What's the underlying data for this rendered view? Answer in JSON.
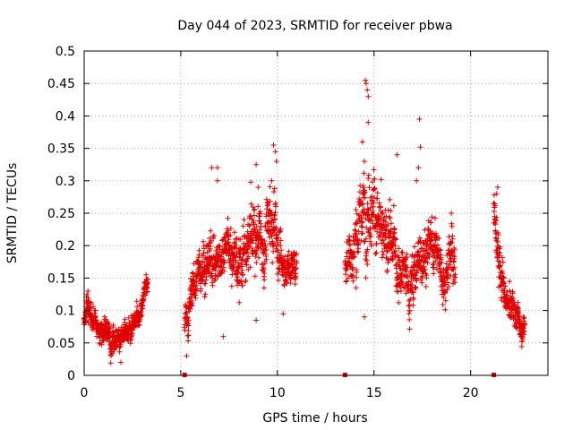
{
  "chart_data": {
    "type": "scatter",
    "title": "Day 044 of 2023, SRMTID for receiver pbwa",
    "xlabel": "GPS time / hours",
    "ylabel": "SRMTID / TECUs",
    "xlim": [
      0,
      24
    ],
    "ylim": [
      0,
      0.5
    ],
    "grid": true,
    "xticks": [
      0,
      5,
      10,
      15,
      20
    ],
    "xtick_labels": [
      "0",
      "5",
      "10",
      "15",
      "20"
    ],
    "yticks": [
      0,
      0.05,
      0.1,
      0.15,
      0.2,
      0.25,
      0.3,
      0.35,
      0.4,
      0.45,
      0.5
    ],
    "ytick_labels": [
      "0",
      "0.05",
      "0.1",
      "0.15",
      "0.2",
      "0.25",
      "0.3",
      "0.35",
      "0.4",
      "0.45",
      "0.5"
    ],
    "marker": "+",
    "color": "#e00000",
    "zero_markers_x": [
      5.2,
      13.5,
      21.2
    ],
    "series": [
      {
        "name": "SRMTID",
        "segments": [
          {
            "x_start": 0.0,
            "x_end": 3.3,
            "anchors": [
              [
                0.0,
                0.09,
                0.015
              ],
              [
                0.3,
                0.1,
                0.018
              ],
              [
                0.8,
                0.07,
                0.015
              ],
              [
                1.5,
                0.06,
                0.015
              ],
              [
                2.0,
                0.055,
                0.015
              ],
              [
                2.5,
                0.07,
                0.015
              ],
              [
                2.9,
                0.1,
                0.015
              ],
              [
                3.2,
                0.135,
                0.012
              ]
            ],
            "points_per_hour": 140
          },
          {
            "x_start": 5.2,
            "x_end": 11.0,
            "anchors": [
              [
                5.2,
                0.08,
                0.02
              ],
              [
                5.6,
                0.13,
                0.025
              ],
              [
                6.2,
                0.18,
                0.03
              ],
              [
                6.8,
                0.17,
                0.035
              ],
              [
                7.3,
                0.21,
                0.03
              ],
              [
                8.0,
                0.17,
                0.04
              ],
              [
                8.8,
                0.21,
                0.04
              ],
              [
                9.3,
                0.2,
                0.04
              ],
              [
                9.8,
                0.25,
                0.05
              ],
              [
                10.3,
                0.16,
                0.02
              ],
              [
                10.9,
                0.17,
                0.02
              ]
            ],
            "points_per_hour": 130
          },
          {
            "x_start": 13.5,
            "x_end": 19.2,
            "anchors": [
              [
                13.5,
                0.18,
                0.03
              ],
              [
                14.0,
                0.2,
                0.04
              ],
              [
                14.5,
                0.27,
                0.05
              ],
              [
                15.0,
                0.26,
                0.04
              ],
              [
                15.5,
                0.2,
                0.04
              ],
              [
                16.2,
                0.18,
                0.04
              ],
              [
                16.8,
                0.13,
                0.03
              ],
              [
                17.5,
                0.19,
                0.04
              ],
              [
                18.1,
                0.2,
                0.03
              ],
              [
                18.6,
                0.16,
                0.03
              ],
              [
                19.1,
                0.2,
                0.04
              ]
            ],
            "points_per_hour": 130
          },
          {
            "x_start": 21.2,
            "x_end": 22.8,
            "anchors": [
              [
                21.2,
                0.25,
                0.03
              ],
              [
                21.5,
                0.18,
                0.03
              ],
              [
                21.8,
                0.11,
                0.02
              ],
              [
                22.3,
                0.095,
                0.02
              ],
              [
                22.7,
                0.07,
                0.015
              ]
            ],
            "points_per_hour": 140
          }
        ],
        "highlights": [
          [
            14.55,
            0.455
          ],
          [
            14.6,
            0.45
          ],
          [
            14.65,
            0.44
          ],
          [
            14.7,
            0.43
          ],
          [
            14.7,
            0.39
          ],
          [
            14.4,
            0.36
          ],
          [
            14.5,
            0.33
          ],
          [
            17.35,
            0.395
          ],
          [
            17.4,
            0.352
          ],
          [
            16.2,
            0.34
          ],
          [
            17.2,
            0.3
          ],
          [
            17.3,
            0.32
          ],
          [
            9.8,
            0.355
          ],
          [
            9.9,
            0.345
          ],
          [
            9.95,
            0.33
          ],
          [
            8.9,
            0.325
          ],
          [
            6.6,
            0.32
          ],
          [
            6.9,
            0.32
          ],
          [
            6.9,
            0.3
          ],
          [
            9.7,
            0.3
          ],
          [
            9.0,
            0.29
          ],
          [
            21.4,
            0.29
          ],
          [
            21.35,
            0.28
          ],
          [
            3.2,
            0.155
          ],
          [
            5.3,
            0.03
          ],
          [
            1.9,
            0.02
          ],
          [
            0.2,
            0.13
          ],
          [
            7.2,
            0.06
          ],
          [
            8.9,
            0.085
          ],
          [
            10.3,
            0.095
          ],
          [
            14.5,
            0.09
          ],
          [
            19.0,
            0.25
          ]
        ]
      }
    ]
  }
}
